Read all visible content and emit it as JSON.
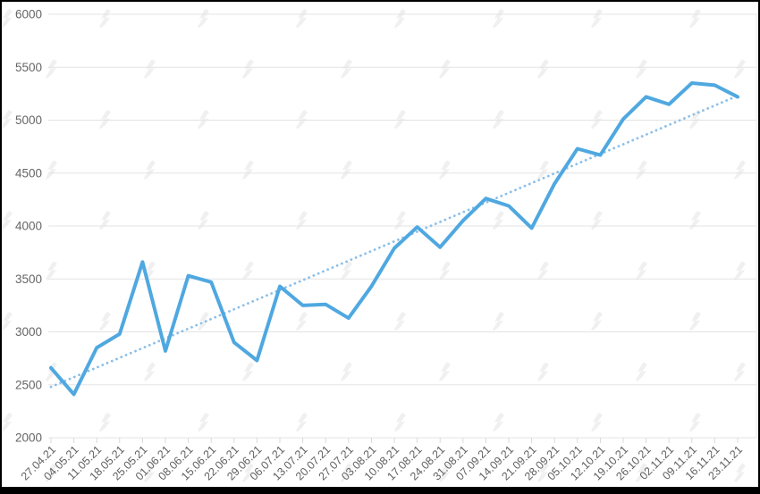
{
  "chart_data": {
    "type": "line",
    "title": "",
    "xlabel": "",
    "ylabel": "",
    "x": [
      "27.04.21",
      "04.05.21",
      "11.05.21",
      "18.05.21",
      "25.05.21",
      "01.06.21",
      "08.06.21",
      "15.06.21",
      "22.06.21",
      "29.06.21",
      "06.07.21",
      "13.07.21",
      "20.07.21",
      "27.07.21",
      "03.08.21",
      "10.08.21",
      "17.08.21",
      "24.08.21",
      "31.08.21",
      "07.09.21",
      "14.09.21",
      "21.09.21",
      "28.09.21",
      "05.10.21",
      "12.10.21",
      "19.10.21",
      "26.10.21",
      "02.11.21",
      "09.11.21",
      "16.11.21",
      "23.11.21"
    ],
    "series": [
      {
        "name": "value-line",
        "style": "solid",
        "color": "#4fa8e0",
        "values": [
          2660,
          2410,
          2850,
          2980,
          3660,
          2820,
          3530,
          3470,
          2900,
          2730,
          3430,
          3250,
          3260,
          3130,
          3430,
          3790,
          3990,
          3800,
          4050,
          4260,
          4190,
          3980,
          4400,
          4730,
          4670,
          5010,
          5220,
          5150,
          5350,
          5330,
          5220
        ]
      },
      {
        "name": "trend-line",
        "style": "dotted",
        "color": "#8bbfe9",
        "trend_start": 2480,
        "trend_end": 5230
      }
    ],
    "ylim": [
      2000,
      6000
    ],
    "yticks": [
      2000,
      2500,
      3000,
      3500,
      4000,
      4500,
      5000,
      5500,
      6000
    ],
    "grid": "horizontal",
    "legend": "none"
  },
  "colors": {
    "background": "#ffffff",
    "frame": "#000000",
    "gridline": "#e3e3e3",
    "plot_right_edge": "#e8e8e8",
    "tick": "#d9d9d9",
    "y_label": "#666666",
    "x_label": "#5f5f5f",
    "watermark": "#f0f0f0"
  },
  "watermark": {
    "name": "forklog-logo",
    "glyph": "lightning-hand"
  }
}
